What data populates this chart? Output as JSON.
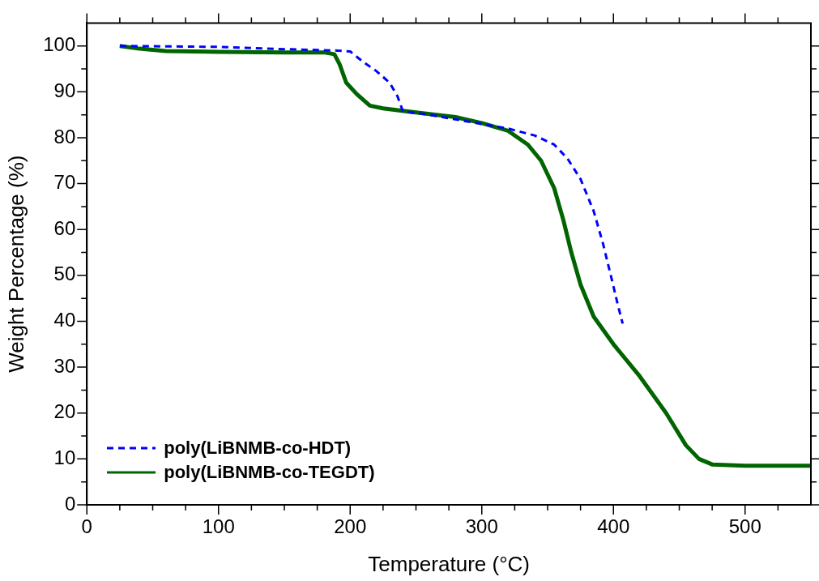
{
  "chart_data": {
    "type": "line",
    "xlabel": "Temperature (°C)",
    "ylabel": "Weight Percentage (%)",
    "xlim": [
      0,
      550
    ],
    "ylim": [
      0,
      105
    ],
    "xticks": [
      0,
      {
        "value": 25,
        "label": null
      },
      100,
      {
        "value": 50,
        "label": null
      },
      {
        "value": 75,
        "label": null
      },
      {
        "value": 125,
        "label": null
      },
      {
        "value": 150,
        "label": null
      },
      {
        "value": 175,
        "label": null
      },
      200,
      {
        "value": 225,
        "label": null
      },
      {
        "value": 250,
        "label": null
      },
      {
        "value": 275,
        "label": null
      },
      300,
      {
        "value": 325,
        "label": null
      },
      {
        "value": 350,
        "label": null
      },
      {
        "value": 375,
        "label": null
      },
      400,
      {
        "value": 425,
        "label": null
      },
      {
        "value": 450,
        "label": null
      },
      {
        "value": 475,
        "label": null
      },
      500,
      {
        "value": 525,
        "label": null
      }
    ],
    "yticks": [
      0,
      {
        "value": 5,
        "label": null
      },
      10,
      {
        "value": 15,
        "label": null
      },
      20,
      {
        "value": 25,
        "label": null
      },
      30,
      {
        "value": 35,
        "label": null
      },
      40,
      {
        "value": 45,
        "label": null
      },
      50,
      {
        "value": 55,
        "label": null
      },
      60,
      {
        "value": 65,
        "label": null
      },
      70,
      {
        "value": 75,
        "label": null
      },
      80,
      {
        "value": 85,
        "label": null
      },
      90,
      {
        "value": 95,
        "label": null
      },
      100
    ],
    "legend": "bottom left",
    "grid": false,
    "series": [
      {
        "name": "poly(LiBNMB-co-HDT)",
        "color": "#0000ff",
        "line_style": "dashed",
        "x": [
          25,
          100,
          150,
          190,
          200,
          210,
          220,
          230,
          236,
          240,
          260,
          280,
          300,
          320,
          340,
          355,
          365,
          375,
          385,
          392,
          398,
          403,
          407
        ],
        "values": [
          100,
          99.8,
          99.3,
          99,
          98.8,
          96.5,
          94.5,
          92,
          89,
          85.8,
          85,
          84,
          83,
          82,
          80.5,
          78.5,
          75.5,
          71,
          64,
          57,
          50,
          44,
          39.5
        ]
      },
      {
        "name": "poly(LiBNMB-co-TEGDT)",
        "color": "#006400",
        "line_style": "solid",
        "x": [
          25,
          40,
          60,
          100,
          150,
          180,
          188,
          192,
          197,
          205,
          215,
          225,
          250,
          280,
          300,
          320,
          335,
          345,
          355,
          362,
          368,
          375,
          385,
          400,
          420,
          440,
          455,
          465,
          475,
          500,
          550
        ],
        "values": [
          100,
          99.4,
          98.9,
          98.7,
          98.6,
          98.6,
          98.2,
          96,
          92,
          89.5,
          87,
          86.4,
          85.5,
          84.5,
          83.2,
          81.5,
          78.5,
          75,
          69,
          62,
          55,
          48,
          41,
          35,
          28,
          20,
          13,
          10,
          8.8,
          8.5,
          8.5
        ]
      }
    ]
  }
}
